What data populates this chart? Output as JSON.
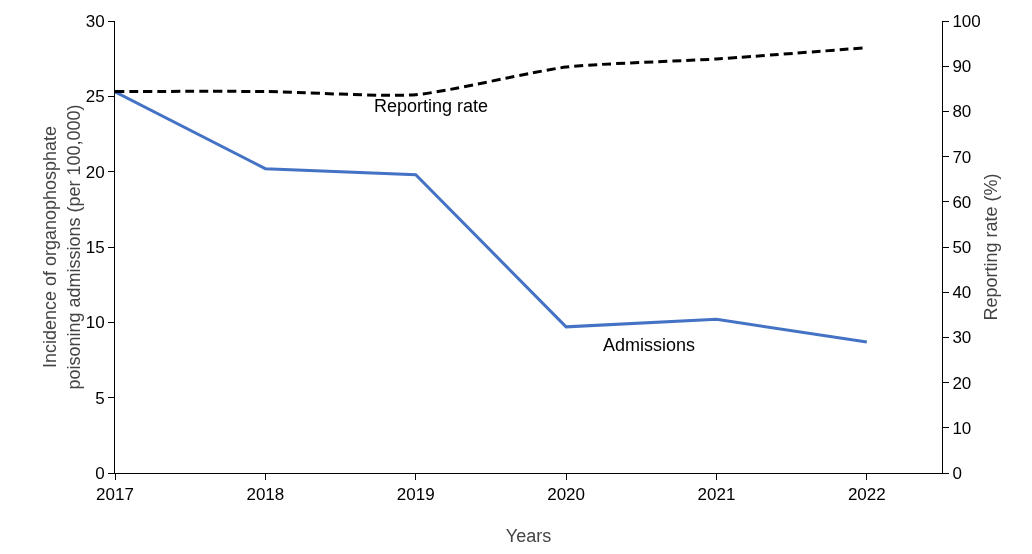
{
  "chart_data": {
    "type": "line",
    "xlabel": "Years",
    "ylabel": "Incidence of organophosphate poisoning admissions (per 100,000)",
    "y2label": "Reporting rate (%)",
    "x": [
      2017,
      2018,
      2019,
      2020,
      2021,
      2022
    ],
    "series": [
      {
        "name": "Admissions",
        "color": "#4472c4",
        "line_style": "solid",
        "values": [
          25.3,
          20.2,
          19.8,
          9.7,
          10.2,
          8.7
        ]
      },
      {
        "name": "Reporting rate",
        "color": "#000000",
        "line_style": "dashed",
        "axis": "y2",
        "values": [
          84.4,
          84.4,
          83.7,
          89.8,
          91.6,
          94.1
        ]
      }
    ],
    "xlim": [
      2017,
      2022.5
    ],
    "xticks": [
      2017,
      2018,
      2019,
      2020,
      2021,
      2022
    ],
    "ylim": [
      0,
      30
    ],
    "yticks": [
      0,
      5,
      10,
      15,
      20,
      25,
      30
    ],
    "y2lim": [
      0,
      100
    ],
    "y2ticks": [
      0,
      10,
      20,
      30,
      40,
      50,
      60,
      70,
      80,
      90,
      100
    ],
    "grid": false,
    "legend": false,
    "marker": "none"
  }
}
